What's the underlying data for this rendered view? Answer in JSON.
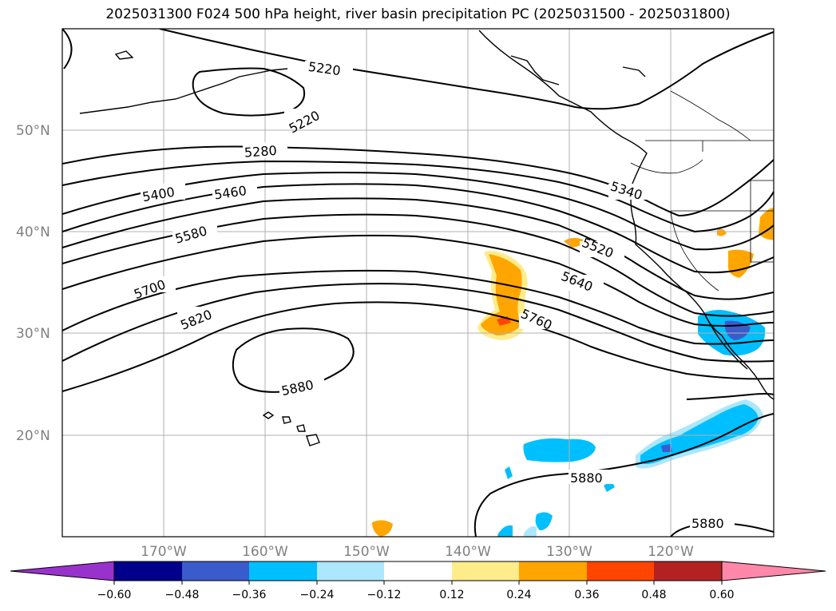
{
  "title": "2025031300 F024 500 hPa height, river basin precipitation PC (2025031500 - 2025031800)",
  "map": {
    "lat_labels": [
      {
        "id": "lat50",
        "text": "50°N"
      },
      {
        "id": "lat40",
        "text": "40°N"
      },
      {
        "id": "lat30",
        "text": "30°N"
      },
      {
        "id": "lat20",
        "text": "20°N"
      }
    ],
    "lon_labels": [
      {
        "id": "lon170",
        "text": "170°W"
      },
      {
        "id": "lon160",
        "text": "160°W"
      },
      {
        "id": "lon150",
        "text": "150°W"
      },
      {
        "id": "lon140",
        "text": "140°W"
      },
      {
        "id": "lon130",
        "text": "130°W"
      },
      {
        "id": "lon120",
        "text": "120°W"
      }
    ],
    "contour_labels": [
      {
        "id": "c5220a",
        "text": "5220"
      },
      {
        "id": "c5220b",
        "text": "5220"
      },
      {
        "id": "c5280",
        "text": "5280"
      },
      {
        "id": "c5400",
        "text": "5400"
      },
      {
        "id": "c5460",
        "text": "5460"
      },
      {
        "id": "c5340",
        "text": "5340"
      },
      {
        "id": "c5580",
        "text": "5580"
      },
      {
        "id": "c5520",
        "text": "5520"
      },
      {
        "id": "c5700",
        "text": "5700"
      },
      {
        "id": "c5640",
        "text": "5640"
      },
      {
        "id": "c5820",
        "text": "5820"
      },
      {
        "id": "c5760",
        "text": "5760"
      },
      {
        "id": "c5880a",
        "text": "5880"
      },
      {
        "id": "c5880b",
        "text": "5880"
      },
      {
        "id": "c5880c",
        "text": "5880"
      }
    ]
  },
  "colorbar": {
    "colors": [
      "#9932cc",
      "#00008b",
      "#3a5bcc",
      "#00bfff",
      "#ade6ff",
      "#ffffff",
      "#ffec8b",
      "#ffa500",
      "#ff4500",
      "#b22222",
      "#ff88aa",
      "#ff88aa"
    ],
    "tick_labels": [
      "−0.60",
      "−0.48",
      "−0.36",
      "−0.24",
      "−0.12",
      "0.12",
      "0.24",
      "0.36",
      "0.48",
      "0.60"
    ]
  }
}
